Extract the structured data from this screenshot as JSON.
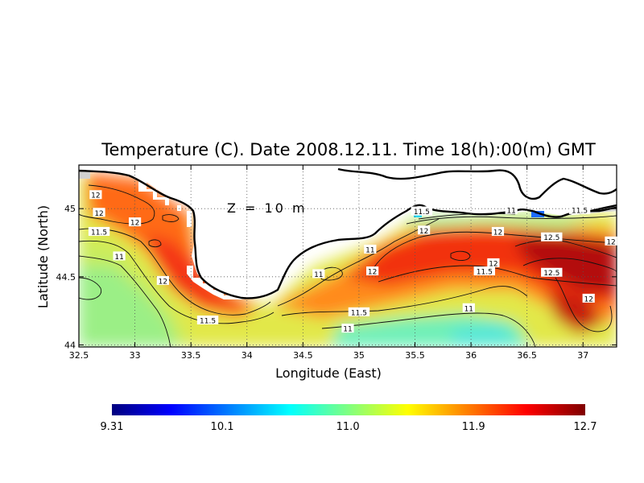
{
  "chart_data": {
    "type": "heatmap",
    "title": "Temperature (C). Date 2008.12.11. Time 18(h):00(m) GMT",
    "xlabel": "Longitude (East)",
    "ylabel": "Latitude (North)",
    "xlim": [
      32.5,
      37.3
    ],
    "ylim": [
      43.985,
      45.32
    ],
    "x_ticks": [
      "32.5",
      "33",
      "33.5",
      "34",
      "34.5",
      "35",
      "35.5",
      "36",
      "36.5",
      "37"
    ],
    "x_tick_values": [
      32.5,
      33,
      33.5,
      34,
      34.5,
      35,
      35.5,
      36,
      36.5,
      37
    ],
    "y_ticks": [
      "44",
      "44.5",
      "45"
    ],
    "y_tick_values": [
      44,
      44.5,
      45
    ],
    "annotation": "Z = 10 m",
    "grid": true,
    "colorbar": {
      "ticks": [
        "9.31",
        "10.1",
        "11.0",
        "11.9",
        "12.7"
      ],
      "tick_values": [
        9.31,
        10.1,
        11.0,
        11.9,
        12.7
      ],
      "min": 9.31,
      "max": 12.7,
      "colors": [
        "#00007f",
        "#0000ff",
        "#0080ff",
        "#00ffff",
        "#80ff80",
        "#ffff00",
        "#ff8000",
        "#ff0000",
        "#7f0000"
      ]
    },
    "contour_labels": [
      {
        "text": "12",
        "lon": 32.65,
        "lat": 45.1
      },
      {
        "text": "12",
        "lon": 32.68,
        "lat": 44.97
      },
      {
        "text": "11.5",
        "lon": 32.68,
        "lat": 44.83
      },
      {
        "text": "12",
        "lon": 33.0,
        "lat": 44.9
      },
      {
        "text": "11",
        "lon": 32.86,
        "lat": 44.65
      },
      {
        "text": "12",
        "lon": 33.25,
        "lat": 44.47
      },
      {
        "text": "11.5",
        "lon": 33.65,
        "lat": 44.18
      },
      {
        "text": "11",
        "lon": 34.64,
        "lat": 44.52
      },
      {
        "text": "11",
        "lon": 35.1,
        "lat": 44.7
      },
      {
        "text": "12",
        "lon": 35.12,
        "lat": 44.54
      },
      {
        "text": "11.5",
        "lon": 35.0,
        "lat": 44.24
      },
      {
        "text": "11",
        "lon": 34.9,
        "lat": 44.12
      },
      {
        "text": "11.5",
        "lon": 35.56,
        "lat": 44.98
      },
      {
        "text": "12",
        "lon": 35.58,
        "lat": 44.84
      },
      {
        "text": "11",
        "lon": 36.36,
        "lat": 44.99
      },
      {
        "text": "11.5",
        "lon": 36.97,
        "lat": 44.99
      },
      {
        "text": "12",
        "lon": 36.24,
        "lat": 44.83
      },
      {
        "text": "12.5",
        "lon": 36.72,
        "lat": 44.79
      },
      {
        "text": "12",
        "lon": 37.25,
        "lat": 44.76
      },
      {
        "text": "12",
        "lon": 36.2,
        "lat": 44.6
      },
      {
        "text": "11.5",
        "lon": 36.12,
        "lat": 44.54
      },
      {
        "text": "12.5",
        "lon": 36.72,
        "lat": 44.53
      },
      {
        "text": "11",
        "lon": 35.98,
        "lat": 44.27
      },
      {
        "text": "12",
        "lon": 37.05,
        "lat": 44.34
      }
    ]
  }
}
